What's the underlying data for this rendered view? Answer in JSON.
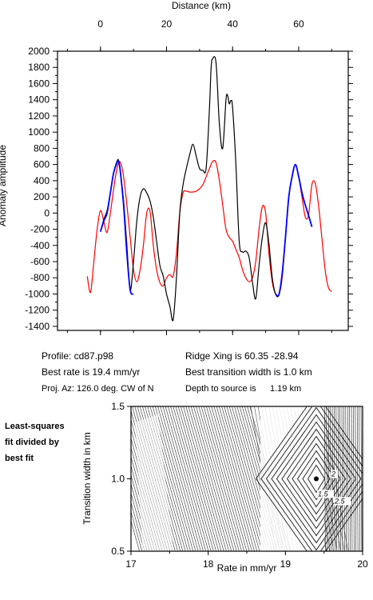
{
  "chart_data": [
    {
      "type": "line",
      "xlabel": "Distance (km)",
      "ylabel": "Anomaly amplitude",
      "xlim": [
        -13,
        75
      ],
      "ylim": [
        -1450,
        2000
      ],
      "x_ticks": [
        0,
        20,
        40,
        60
      ],
      "y_ticks": [
        -1400,
        -1200,
        -1000,
        -800,
        -600,
        -400,
        -200,
        0,
        200,
        400,
        600,
        800,
        1000,
        1200,
        1400,
        1600,
        1800,
        2000
      ],
      "grid": false,
      "legend": "none",
      "series": [
        {
          "color": "#000000",
          "x": [
            0,
            1,
            2,
            3,
            4,
            5,
            5.5,
            6,
            7,
            8,
            9,
            10,
            11,
            12,
            13,
            14,
            15,
            16,
            17,
            18,
            19,
            20,
            21,
            22,
            23,
            24,
            25,
            26,
            27,
            28,
            29,
            30,
            31,
            32,
            33,
            33.5,
            34,
            35,
            36,
            37,
            38,
            38.5,
            39,
            39.5,
            40,
            41,
            42,
            43,
            44,
            45,
            46,
            47,
            48,
            49,
            50,
            51,
            52,
            53,
            54,
            55,
            56,
            57,
            58,
            59,
            60,
            61,
            62,
            63,
            64
          ],
          "y": [
            -230,
            -80,
            30,
            250,
            500,
            640,
            650,
            520,
            150,
            -400,
            -950,
            -600,
            -100,
            200,
            300,
            250,
            150,
            -50,
            -350,
            -650,
            -780,
            -1000,
            -1150,
            -1320,
            -800,
            0,
            350,
            550,
            720,
            850,
            700,
            550,
            530,
            560,
            1300,
            1800,
            1910,
            1850,
            1100,
            800,
            1400,
            1450,
            1350,
            1390,
            1300,
            600,
            -350,
            -480,
            -470,
            -550,
            -850,
            -1060,
            -650,
            -300,
            -120,
            -380,
            -800,
            -1000,
            -1010,
            -750,
            -300,
            200,
            450,
            600,
            450,
            250,
            100,
            -30,
            -170
          ]
        },
        {
          "color": "#0000ff",
          "x": [
            0,
            1,
            2,
            3,
            4,
            5,
            5.5,
            6,
            7,
            8,
            9,
            10
          ],
          "y": [
            -230,
            -100,
            0,
            250,
            500,
            620,
            640,
            520,
            100,
            -500,
            -950,
            -1000
          ]
        },
        {
          "color": "#0000ff",
          "x": [
            53,
            54,
            55,
            56,
            57,
            58,
            59,
            60,
            61,
            62,
            63,
            64
          ],
          "y": [
            -1000,
            -1010,
            -750,
            -300,
            200,
            450,
            600,
            450,
            250,
            100,
            -30,
            -170
          ]
        },
        {
          "color": "#ff0000",
          "x": [
            -4,
            -3,
            -2,
            -1,
            0,
            1,
            2,
            3,
            4,
            5,
            6,
            7,
            8,
            9,
            10,
            11,
            12,
            13,
            14,
            15,
            16,
            17,
            18,
            19,
            20,
            21,
            22,
            23,
            24,
            25,
            26,
            27,
            28,
            29,
            30,
            31,
            32,
            33,
            34,
            35,
            36,
            37,
            38,
            39,
            40,
            41,
            42,
            43,
            44,
            45,
            46,
            47,
            48,
            49,
            50,
            51,
            52,
            53,
            54,
            55,
            56,
            57,
            58,
            59,
            60,
            61,
            62,
            63,
            64,
            65,
            66,
            67,
            68,
            69,
            70
          ],
          "y": [
            -780,
            -980,
            -600,
            -200,
            30,
            -100,
            -240,
            0,
            300,
            550,
            630,
            450,
            100,
            -300,
            -700,
            -850,
            -700,
            -400,
            0,
            20,
            -400,
            -700,
            -860,
            -900,
            -800,
            -760,
            -780,
            -500,
            0,
            250,
            270,
            260,
            260,
            270,
            300,
            350,
            450,
            550,
            640,
            620,
            400,
            100,
            -200,
            -300,
            -350,
            -450,
            -550,
            -700,
            -800,
            -850,
            -800,
            -600,
            -200,
            80,
            0,
            -500,
            -850,
            -1000,
            -1010,
            -800,
            -300,
            200,
            450,
            590,
            450,
            200,
            -50,
            -20,
            350,
            370,
            100,
            -300,
            -700,
            -920,
            -970
          ]
        }
      ]
    },
    {
      "type": "contour",
      "xlabel": "Rate in mm/yr",
      "ylabel": "Transition width in km",
      "xlim": [
        17,
        20
      ],
      "ylim": [
        0.5,
        1.5
      ],
      "x_ticks": [
        17,
        18,
        19,
        20
      ],
      "y_ticks": [
        0.5,
        1.0,
        1.5
      ],
      "grid": false,
      "best_fit_point": {
        "x": 19.4,
        "y": 1.0
      },
      "contour_labels": [
        "2",
        "1.5",
        "2.5"
      ],
      "annotation": "Least-squares fit divided by best fit"
    }
  ],
  "info": {
    "profile": "Profile: cd87.p98",
    "ridge_xing": "Ridge Xing is 60.35 -28.94",
    "best_rate": "Best rate is 19.4 mm/yr",
    "best_width": "Best transition width is 1.0 km",
    "proj_az": "Proj. Az: 126.0 deg. CW of N",
    "depth_label": "Depth to source is",
    "depth_value": "1.19 km"
  },
  "side_note": [
    "Least-squares",
    "fit divided by",
    "best fit"
  ],
  "tick_labels": {
    "top_x": [
      "0",
      "20",
      "40",
      "60"
    ],
    "left_y": [
      "2000",
      "1800",
      "1600",
      "1400",
      "1200",
      "1000",
      "800",
      "600",
      "400",
      "200",
      "0",
      "-200",
      "-400",
      "-600",
      "-800",
      "-1000",
      "-1200",
      "-1400"
    ],
    "contour_x": [
      "17",
      "18",
      "19",
      "20"
    ],
    "contour_y": [
      "1.5",
      "1.0",
      "0.5"
    ]
  }
}
